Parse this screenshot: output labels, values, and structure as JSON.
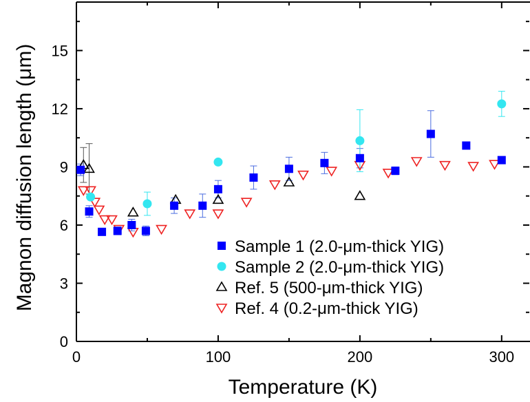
{
  "chart_data": {
    "type": "scatter",
    "title": "",
    "xlabel": "Temperature (K)",
    "ylabel": "Magnon diffusion length (μm)",
    "xlim": [
      0,
      320
    ],
    "ylim": [
      0,
      17.5
    ],
    "x_ticks": [
      0,
      100,
      200,
      300
    ],
    "x_tick_labels": [
      "0",
      "100",
      "200",
      "300"
    ],
    "y_ticks": [
      0,
      3,
      6,
      9,
      12,
      15
    ],
    "y_tick_labels": [
      "0",
      "3",
      "6",
      "9",
      "12",
      "15"
    ],
    "grid": false,
    "legend_position": "bottom-right",
    "series": [
      {
        "name": "Sample 1 (2.0-μm-thick YIG)",
        "marker": "square",
        "color": "#0000ff",
        "error_color": "#4a6ce0",
        "points": [
          {
            "x": 3,
            "y": 8.85,
            "err": 0.3
          },
          {
            "x": 9,
            "y": 6.7,
            "err": 0.3
          },
          {
            "x": 18,
            "y": 5.65,
            "err": 0.1
          },
          {
            "x": 29,
            "y": 5.7,
            "err": 0.2
          },
          {
            "x": 39,
            "y": 6.0,
            "err": 0.3
          },
          {
            "x": 49,
            "y": 5.7,
            "err": 0.25
          },
          {
            "x": 69,
            "y": 7.0,
            "err": 0.4
          },
          {
            "x": 89,
            "y": 7.0,
            "err": 0.6
          },
          {
            "x": 100,
            "y": 7.85,
            "err": 0.45
          },
          {
            "x": 125,
            "y": 8.45,
            "err": 0.6
          },
          {
            "x": 150,
            "y": 8.9,
            "err": 0.6
          },
          {
            "x": 175,
            "y": 9.2,
            "err": 0.55
          },
          {
            "x": 200,
            "y": 9.45,
            "err": 0.5
          },
          {
            "x": 225,
            "y": 8.8,
            "err": 0.2
          },
          {
            "x": 250,
            "y": 10.7,
            "err": 1.2
          },
          {
            "x": 275,
            "y": 10.1,
            "err": 0
          },
          {
            "x": 300,
            "y": 9.35,
            "err": 0
          }
        ]
      },
      {
        "name": "Sample 2 (2.0-μm-thick YIG)",
        "marker": "circle",
        "color": "#33e6f0",
        "error_color": "#33e6f0",
        "points": [
          {
            "x": 10,
            "y": 7.45,
            "err": 0
          },
          {
            "x": 50,
            "y": 7.1,
            "err": 0.6
          },
          {
            "x": 100,
            "y": 9.25,
            "err": 0
          },
          {
            "x": 200,
            "y": 10.35,
            "err": 1.6
          },
          {
            "x": 300,
            "y": 12.25,
            "err": 0.65
          }
        ]
      },
      {
        "name": "Ref. 5 (500-μm-thick YIG)",
        "marker": "triangle-up-open",
        "color": "#000000",
        "error_color": "#555555",
        "points": [
          {
            "x": 5,
            "y": 9.1,
            "err": 0.9
          },
          {
            "x": 9,
            "y": 8.9,
            "err": 1.3
          },
          {
            "x": 40,
            "y": 6.65,
            "err": 0
          },
          {
            "x": 70,
            "y": 7.3,
            "err": 0
          },
          {
            "x": 100,
            "y": 7.3,
            "err": 0
          },
          {
            "x": 150,
            "y": 8.2,
            "err": 0
          },
          {
            "x": 200,
            "y": 7.5,
            "err": 0
          }
        ]
      },
      {
        "name": "Ref. 4 (0.2-μm-thick YIG)",
        "marker": "triangle-down-open",
        "color": "#ee2222",
        "error_color": "#ee2222",
        "points": [
          {
            "x": 5,
            "y": 7.8
          },
          {
            "x": 10,
            "y": 7.8
          },
          {
            "x": 13,
            "y": 7.2
          },
          {
            "x": 16,
            "y": 6.8
          },
          {
            "x": 20,
            "y": 6.3
          },
          {
            "x": 25,
            "y": 6.3
          },
          {
            "x": 30,
            "y": 5.8
          },
          {
            "x": 40,
            "y": 5.65
          },
          {
            "x": 60,
            "y": 5.8
          },
          {
            "x": 80,
            "y": 6.6
          },
          {
            "x": 100,
            "y": 6.6
          },
          {
            "x": 120,
            "y": 7.2
          },
          {
            "x": 140,
            "y": 8.1
          },
          {
            "x": 160,
            "y": 8.6
          },
          {
            "x": 180,
            "y": 8.8
          },
          {
            "x": 200,
            "y": 9.1
          },
          {
            "x": 220,
            "y": 8.7
          },
          {
            "x": 240,
            "y": 9.3
          },
          {
            "x": 260,
            "y": 9.1
          },
          {
            "x": 280,
            "y": 9.05
          },
          {
            "x": 295,
            "y": 9.15
          }
        ]
      }
    ]
  }
}
